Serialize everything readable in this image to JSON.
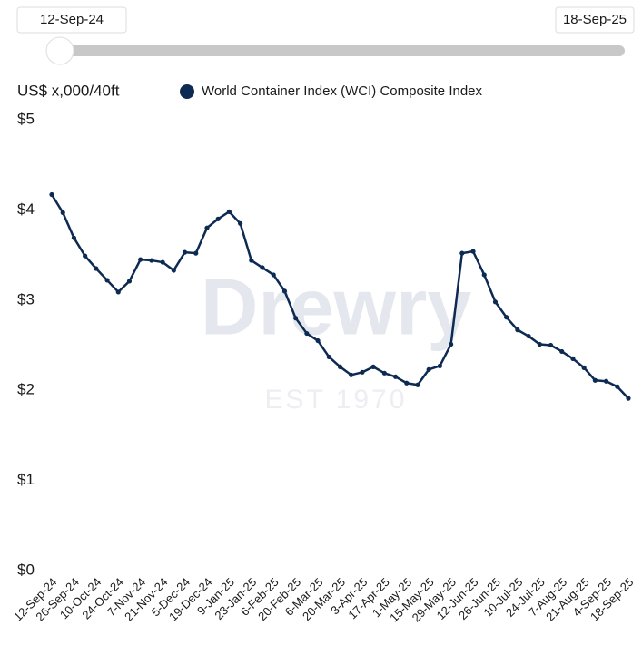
{
  "slider": {
    "start": "12-Sep-24",
    "end": "18-Sep-25"
  },
  "chart_data": {
    "type": "line",
    "ylabel": "US$ x,000/40ft",
    "watermark": "Drewry",
    "watermark_sub": "EST 1970",
    "categories": [
      "12-Sep-24",
      null,
      "26-Sep-24",
      null,
      "10-Oct-24",
      null,
      "24-Oct-24",
      null,
      "7-Nov-24",
      null,
      "21-Nov-24",
      null,
      "5-Dec-24",
      null,
      "19-Dec-24",
      null,
      "9-Jan-25",
      null,
      "23-Jan-25",
      null,
      "6-Feb-25",
      null,
      "20-Feb-25",
      null,
      "6-Mar-25",
      null,
      "20-Mar-25",
      null,
      "3-Apr-25",
      null,
      "17-Apr-25",
      null,
      "1-May-25",
      null,
      "15-May-25",
      null,
      "29-May-25",
      null,
      "12-Jun-25",
      null,
      "26-Jun-25",
      null,
      "10-Jul-25",
      null,
      "24-Jul-25",
      null,
      "7-Aug-25",
      null,
      "21-Aug-25",
      null,
      "4-Sep-25",
      null,
      "18-Sep-25"
    ],
    "series": [
      {
        "name": "World Container Index (WCI) Composite Index",
        "color": "#0d2a52",
        "values": [
          4.17,
          3.97,
          3.69,
          3.49,
          3.35,
          3.22,
          3.09,
          3.21,
          3.45,
          3.44,
          3.42,
          3.33,
          3.53,
          3.52,
          3.8,
          3.9,
          3.98,
          3.85,
          3.44,
          3.36,
          3.28,
          3.1,
          2.8,
          2.63,
          2.55,
          2.37,
          2.26,
          2.17,
          2.2,
          2.26,
          2.19,
          2.15,
          2.08,
          2.06,
          2.23,
          2.27,
          2.51,
          3.52,
          3.54,
          3.28,
          2.98,
          2.81,
          2.67,
          2.6,
          2.51,
          2.5,
          2.43,
          2.35,
          2.25,
          2.11,
          2.1,
          2.04,
          1.91
        ]
      }
    ],
    "ylim": [
      0,
      5
    ],
    "yticks": [
      {
        "value": 0,
        "label": "$0"
      },
      {
        "value": 1,
        "label": "$1"
      },
      {
        "value": 2,
        "label": "$2"
      },
      {
        "value": 3,
        "label": "$3"
      },
      {
        "value": 4,
        "label": "$4"
      },
      {
        "value": 5,
        "label": "$5"
      }
    ],
    "grid": false
  }
}
